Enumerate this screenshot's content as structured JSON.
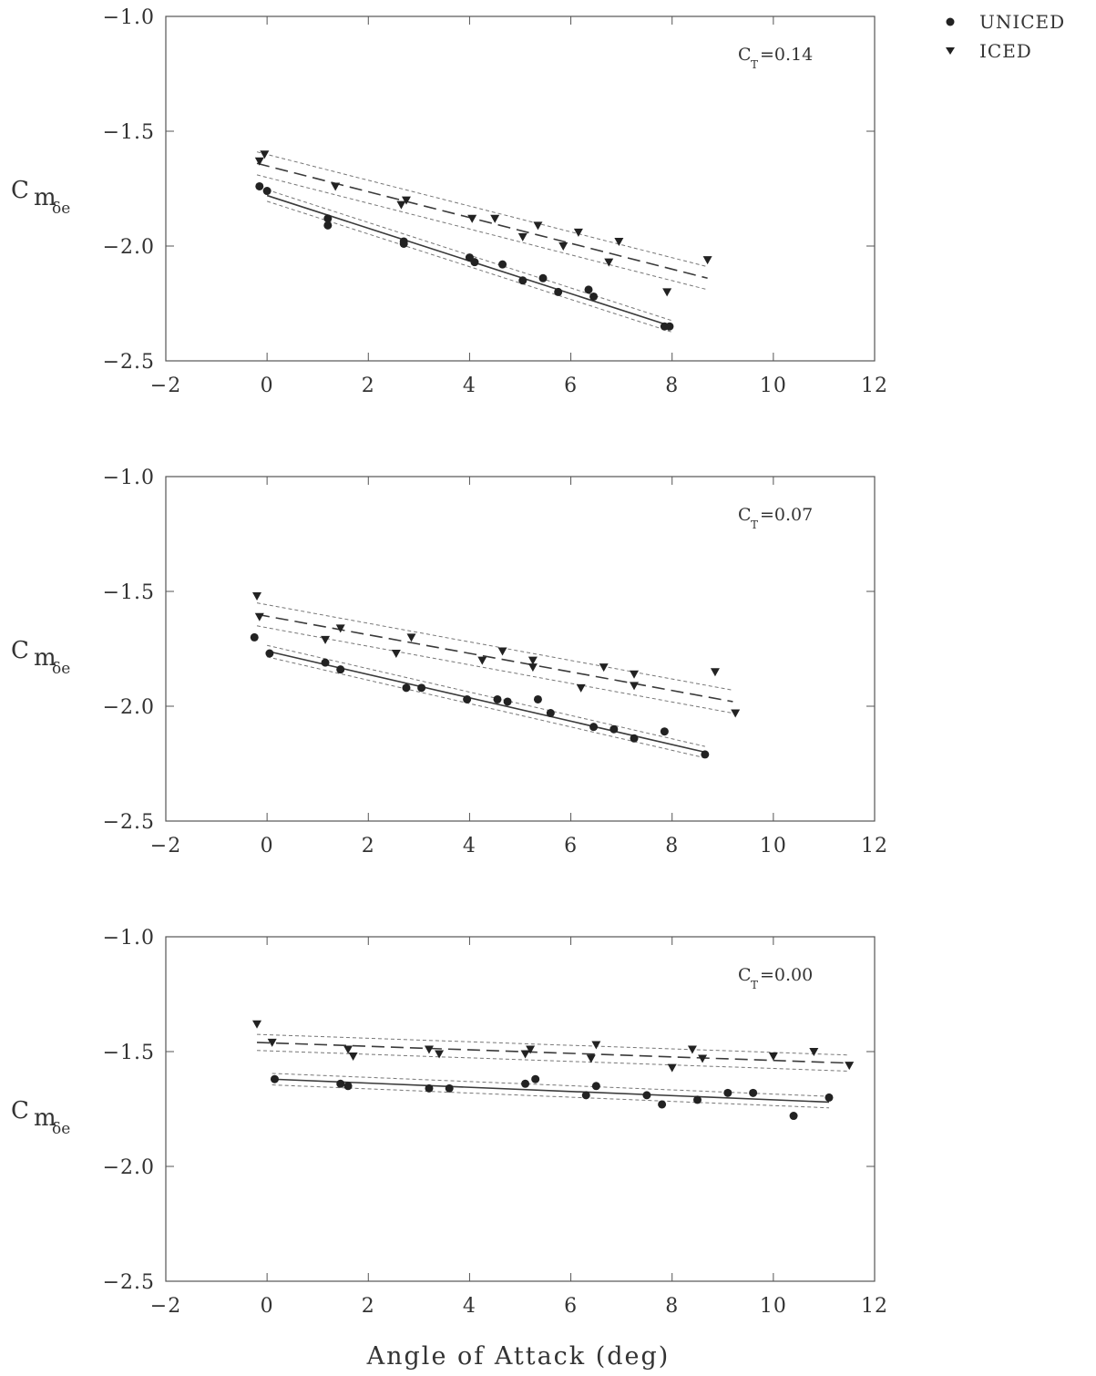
{
  "chart_data": [
    {
      "type": "scatter",
      "annotation": {
        "main": "C",
        "sub": "T",
        "value": "=0.14"
      },
      "ylabel": {
        "main": "C",
        "sub": "m",
        "subsub": "δe"
      },
      "xlim": [
        -2,
        12
      ],
      "ylim": [
        -2.5,
        -1.0
      ],
      "xticks": [
        "-2",
        "0",
        "2",
        "4",
        "6",
        "8",
        "10",
        "12"
      ],
      "yticks": [
        "-1.0",
        "-1.5",
        "-2.0",
        "-2.5"
      ],
      "series": [
        {
          "name": "UNICED",
          "marker": "circle",
          "points": [
            [
              -0.15,
              -1.74
            ],
            [
              0,
              -1.76
            ],
            [
              1.2,
              -1.88
            ],
            [
              1.2,
              -1.91
            ],
            [
              2.7,
              -1.98
            ],
            [
              2.7,
              -1.99
            ],
            [
              4,
              -2.05
            ],
            [
              4.1,
              -2.07
            ],
            [
              4.65,
              -2.08
            ],
            [
              5.05,
              -2.15
            ],
            [
              5.45,
              -2.14
            ],
            [
              5.75,
              -2.2
            ],
            [
              6.35,
              -2.19
            ],
            [
              6.45,
              -2.22
            ],
            [
              7.85,
              -2.35
            ],
            [
              7.95,
              -2.35
            ]
          ],
          "fit": [
            [
              0,
              -1.78
            ],
            [
              8,
              -2.35
            ]
          ],
          "band_offset": 0.025
        },
        {
          "name": "ICED",
          "marker": "triangle",
          "points": [
            [
              -0.15,
              -1.63
            ],
            [
              -0.05,
              -1.6
            ],
            [
              1.35,
              -1.74
            ],
            [
              2.65,
              -1.82
            ],
            [
              2.75,
              -1.8
            ],
            [
              4.05,
              -1.88
            ],
            [
              4.5,
              -1.88
            ],
            [
              5.05,
              -1.96
            ],
            [
              5.35,
              -1.91
            ],
            [
              5.85,
              -2.0
            ],
            [
              6.15,
              -1.94
            ],
            [
              6.75,
              -2.07
            ],
            [
              6.95,
              -1.98
            ],
            [
              7.9,
              -2.2
            ],
            [
              8.7,
              -2.06
            ]
          ],
          "fit": [
            [
              -0.2,
              -1.64
            ],
            [
              8.7,
              -2.14
            ]
          ],
          "band_offset": 0.05
        }
      ]
    },
    {
      "type": "scatter",
      "annotation": {
        "main": "C",
        "sub": "T",
        "value": "=0.07"
      },
      "ylabel": {
        "main": "C",
        "sub": "m",
        "subsub": "δe"
      },
      "xlim": [
        -2,
        12
      ],
      "ylim": [
        -2.5,
        -1.0
      ],
      "xticks": [
        "-2",
        "0",
        "2",
        "4",
        "6",
        "8",
        "10",
        "12"
      ],
      "yticks": [
        "-1.0",
        "-1.5",
        "-2.0",
        "-2.5"
      ],
      "series": [
        {
          "name": "UNICED",
          "marker": "circle",
          "points": [
            [
              -0.25,
              -1.7
            ],
            [
              0.05,
              -1.77
            ],
            [
              1.15,
              -1.81
            ],
            [
              1.45,
              -1.84
            ],
            [
              2.75,
              -1.92
            ],
            [
              3.05,
              -1.92
            ],
            [
              3.95,
              -1.97
            ],
            [
              4.55,
              -1.97
            ],
            [
              4.75,
              -1.98
            ],
            [
              5.35,
              -1.97
            ],
            [
              5.6,
              -2.03
            ],
            [
              6.45,
              -2.09
            ],
            [
              6.85,
              -2.1
            ],
            [
              7.25,
              -2.14
            ],
            [
              7.85,
              -2.11
            ],
            [
              8.65,
              -2.21
            ]
          ],
          "fit": [
            [
              0,
              -1.76
            ],
            [
              8.65,
              -2.2
            ]
          ],
          "band_offset": 0.025
        },
        {
          "name": "ICED",
          "marker": "triangle",
          "points": [
            [
              -0.2,
              -1.52
            ],
            [
              -0.15,
              -1.61
            ],
            [
              1.15,
              -1.71
            ],
            [
              1.45,
              -1.66
            ],
            [
              2.55,
              -1.77
            ],
            [
              2.85,
              -1.7
            ],
            [
              4.25,
              -1.8
            ],
            [
              4.65,
              -1.76
            ],
            [
              5.25,
              -1.8
            ],
            [
              5.25,
              -1.83
            ],
            [
              6.2,
              -1.92
            ],
            [
              6.65,
              -1.83
            ],
            [
              7.25,
              -1.86
            ],
            [
              7.25,
              -1.91
            ],
            [
              8.85,
              -1.85
            ],
            [
              9.25,
              -2.03
            ]
          ],
          "fit": [
            [
              -0.2,
              -1.6
            ],
            [
              9.2,
              -1.98
            ]
          ],
          "band_offset": 0.05
        }
      ]
    },
    {
      "type": "scatter",
      "annotation": {
        "main": "C",
        "sub": "T",
        "value": "=0.00"
      },
      "ylabel": {
        "main": "C",
        "sub": "m",
        "subsub": "δe"
      },
      "xlim": [
        -2,
        12
      ],
      "ylim": [
        -2.5,
        -1.0
      ],
      "xticks": [
        "-2",
        "0",
        "2",
        "4",
        "6",
        "8",
        "10",
        "12"
      ],
      "yticks": [
        "-1.0",
        "-1.5",
        "-2.0",
        "-2.5"
      ],
      "series": [
        {
          "name": "UNICED",
          "marker": "circle",
          "points": [
            [
              0.15,
              -1.62
            ],
            [
              1.45,
              -1.64
            ],
            [
              1.6,
              -1.65
            ],
            [
              3.2,
              -1.66
            ],
            [
              3.6,
              -1.66
            ],
            [
              5.1,
              -1.64
            ],
            [
              5.3,
              -1.62
            ],
            [
              6.3,
              -1.69
            ],
            [
              6.5,
              -1.65
            ],
            [
              7.5,
              -1.69
            ],
            [
              7.8,
              -1.73
            ],
            [
              8.5,
              -1.71
            ],
            [
              9.1,
              -1.68
            ],
            [
              9.6,
              -1.68
            ],
            [
              10.4,
              -1.78
            ],
            [
              11.1,
              -1.7
            ]
          ],
          "fit": [
            [
              0.1,
              -1.62
            ],
            [
              11.1,
              -1.72
            ]
          ],
          "band_offset": 0.025
        },
        {
          "name": "ICED",
          "marker": "triangle",
          "points": [
            [
              -0.2,
              -1.38
            ],
            [
              0.1,
              -1.46
            ],
            [
              1.6,
              -1.49
            ],
            [
              1.7,
              -1.52
            ],
            [
              3.2,
              -1.49
            ],
            [
              3.4,
              -1.51
            ],
            [
              5.1,
              -1.51
            ],
            [
              5.2,
              -1.49
            ],
            [
              6.4,
              -1.53
            ],
            [
              6.5,
              -1.47
            ],
            [
              8,
              -1.57
            ],
            [
              8.4,
              -1.49
            ],
            [
              8.6,
              -1.53
            ],
            [
              10,
              -1.52
            ],
            [
              10.8,
              -1.5
            ],
            [
              11.5,
              -1.56
            ]
          ],
          "fit": [
            [
              -0.2,
              -1.46
            ],
            [
              11.5,
              -1.55
            ]
          ],
          "band_offset": 0.035
        }
      ]
    }
  ],
  "legend": [
    {
      "label": "UNICED",
      "marker": "circle"
    },
    {
      "label": "ICED",
      "marker": "triangle"
    }
  ],
  "xlabel": "Angle of Attack (deg)"
}
